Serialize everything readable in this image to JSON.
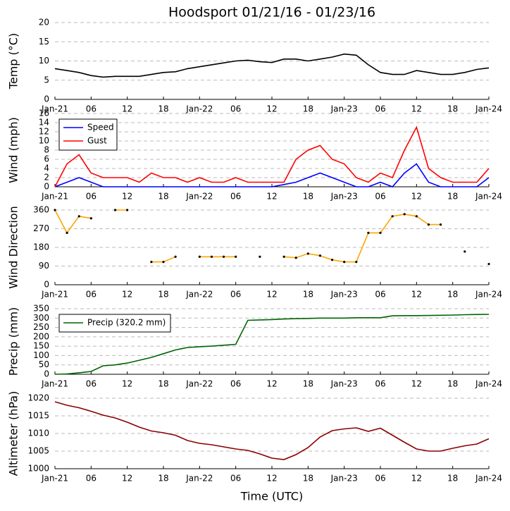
{
  "chart_data": [
    {
      "type": "line",
      "title": "Hoodsport 01/21/16 - 01/23/16",
      "ylabel": "Temp (°C)",
      "x": [
        0,
        2,
        4,
        6,
        8,
        10,
        12,
        14,
        16,
        18,
        20,
        22,
        24,
        26,
        28,
        30,
        32,
        34,
        36,
        38,
        40,
        42,
        44,
        46,
        48,
        50,
        52,
        54,
        56,
        58,
        60,
        62,
        64,
        66,
        68,
        70,
        72
      ],
      "series": [
        {
          "color": "#000000",
          "values": [
            8,
            7.5,
            7,
            6.2,
            5.8,
            6,
            6,
            6,
            6.5,
            7,
            7.2,
            8,
            8.5,
            9,
            9.5,
            10,
            10.2,
            9.8,
            9.6,
            10.5,
            10.5,
            10,
            10.5,
            11,
            11.8,
            11.5,
            9,
            7,
            6.5,
            6.5,
            7.5,
            7,
            6.5,
            6.5,
            7,
            7.8,
            8.2
          ]
        }
      ],
      "xlim": [
        0,
        72
      ],
      "ylim": [
        0,
        20
      ],
      "yticks": [
        0,
        5,
        10,
        15,
        20
      ],
      "grid": true,
      "xticks": [
        {
          "value": 0,
          "label": "Jan-21"
        },
        {
          "value": 6,
          "label": "06"
        },
        12,
        18,
        {
          "value": 24,
          "label": "Jan-22"
        },
        {
          "value": 30,
          "label": "06"
        },
        {
          "value": 36,
          "label": "12"
        },
        {
          "value": 42,
          "label": "18"
        },
        {
          "value": 48,
          "label": "Jan-23"
        },
        {
          "value": 54,
          "label": "06"
        },
        {
          "value": 60,
          "label": "12"
        },
        {
          "value": 66,
          "label": "18"
        },
        {
          "value": 72,
          "label": "Jan-24"
        }
      ]
    },
    {
      "type": "line",
      "ylabel": "Wind (mph)",
      "legend": "upper left",
      "x": [
        0,
        2,
        4,
        6,
        8,
        10,
        12,
        14,
        16,
        18,
        20,
        22,
        24,
        26,
        28,
        30,
        32,
        34,
        36,
        38,
        40,
        42,
        44,
        46,
        48,
        50,
        52,
        54,
        56,
        58,
        60,
        62,
        64,
        66,
        68,
        70,
        72
      ],
      "series": [
        {
          "name": "Speed",
          "color": "#0000ff",
          "values": [
            0,
            1,
            2,
            1,
            0,
            0,
            0,
            0,
            0,
            0,
            0,
            0,
            0,
            0,
            0,
            0,
            0,
            0,
            0,
            0.5,
            1,
            2,
            3,
            2,
            1,
            0,
            0,
            1,
            0,
            3,
            5,
            1,
            0,
            0,
            0,
            0,
            2
          ]
        },
        {
          "name": "Gust",
          "color": "#ff0000",
          "values": [
            0,
            5,
            7,
            3,
            2,
            2,
            2,
            1,
            3,
            2,
            2,
            1,
            2,
            1,
            1,
            2,
            1,
            1,
            1,
            1,
            6,
            8,
            9,
            6,
            5,
            2,
            1,
            3,
            2,
            8,
            13,
            4,
            2,
            1,
            1,
            1,
            4
          ]
        }
      ],
      "xlim": [
        0,
        72
      ],
      "ylim": [
        0,
        16
      ],
      "yticks": [
        0,
        2,
        4,
        6,
        8,
        10,
        12,
        14,
        16
      ],
      "grid": true,
      "xticks": [
        {
          "value": 0,
          "label": "Jan-21"
        },
        {
          "value": 6,
          "label": "06"
        },
        12,
        18,
        {
          "value": 24,
          "label": "Jan-22"
        },
        {
          "value": 30,
          "label": "06"
        },
        {
          "value": 36,
          "label": "12"
        },
        {
          "value": 42,
          "label": "18"
        },
        {
          "value": 48,
          "label": "Jan-23"
        },
        {
          "value": 54,
          "label": "06"
        },
        {
          "value": 60,
          "label": "12"
        },
        {
          "value": 66,
          "label": "18"
        },
        {
          "value": 72,
          "label": "Jan-24"
        }
      ]
    },
    {
      "type": "line",
      "ylabel": "Wind Direction",
      "markers": true,
      "x": [
        0,
        2,
        4,
        6,
        8,
        10,
        12,
        14,
        16,
        18,
        20,
        22,
        24,
        26,
        28,
        30,
        32,
        34,
        36,
        38,
        40,
        42,
        44,
        46,
        48,
        50,
        52,
        54,
        56,
        58,
        60,
        62,
        64,
        66,
        68,
        70,
        72
      ],
      "series": [
        {
          "color": "#ffa500",
          "values": [
            360,
            250,
            330,
            320,
            null,
            360,
            360,
            null,
            110,
            110,
            135,
            null,
            135,
            135,
            135,
            135,
            null,
            135,
            null,
            135,
            130,
            150,
            140,
            120,
            110,
            110,
            250,
            250,
            330,
            340,
            330,
            290,
            290,
            null,
            160,
            null,
            100
          ]
        }
      ],
      "xlim": [
        0,
        72
      ],
      "ylim": [
        0,
        360
      ],
      "yticks": [
        0,
        90,
        180,
        270,
        360
      ],
      "grid": true,
      "xticks": [
        {
          "value": 0,
          "label": "Jan-21"
        },
        {
          "value": 6,
          "label": "06"
        },
        12,
        18,
        {
          "value": 24,
          "label": "Jan-22"
        },
        {
          "value": 30,
          "label": "06"
        },
        {
          "value": 36,
          "label": "12"
        },
        {
          "value": 42,
          "label": "18"
        },
        {
          "value": 48,
          "label": "Jan-23"
        },
        {
          "value": 54,
          "label": "06"
        },
        {
          "value": 60,
          "label": "12"
        },
        {
          "value": 66,
          "label": "18"
        },
        {
          "value": 72,
          "label": "Jan-24"
        }
      ]
    },
    {
      "type": "line",
      "ylabel": "Precip (mm)",
      "legend": "upper left",
      "x": [
        0,
        2,
        4,
        6,
        8,
        10,
        12,
        14,
        16,
        18,
        20,
        22,
        24,
        26,
        28,
        30,
        32,
        34,
        36,
        38,
        40,
        42,
        44,
        46,
        48,
        50,
        52,
        54,
        56,
        58,
        60,
        62,
        64,
        66,
        68,
        70,
        72
      ],
      "series": [
        {
          "name": "Precip (320.2 mm)",
          "color": "#006400",
          "values": [
            0,
            2,
            8,
            15,
            45,
            50,
            60,
            75,
            90,
            110,
            130,
            143,
            147,
            150,
            155,
            160,
            288,
            290,
            292,
            295,
            297,
            298,
            300,
            300,
            300,
            302,
            302,
            302,
            312,
            313,
            313,
            314,
            315,
            316,
            318,
            319,
            320
          ]
        }
      ],
      "xlim": [
        0,
        72
      ],
      "ylim": [
        0,
        350
      ],
      "yticks": [
        0,
        50,
        100,
        150,
        200,
        250,
        300,
        350
      ],
      "grid": true,
      "xticks": [
        {
          "value": 0,
          "label": "Jan-21"
        },
        {
          "value": 6,
          "label": "06"
        },
        12,
        18,
        {
          "value": 24,
          "label": "Jan-22"
        },
        {
          "value": 30,
          "label": "06"
        },
        {
          "value": 36,
          "label": "12"
        },
        {
          "value": 42,
          "label": "18"
        },
        {
          "value": 48,
          "label": "Jan-23"
        },
        {
          "value": 54,
          "label": "06"
        },
        {
          "value": 60,
          "label": "12"
        },
        {
          "value": 66,
          "label": "18"
        },
        {
          "value": 72,
          "label": "Jan-24"
        }
      ]
    },
    {
      "type": "line",
      "ylabel": "Altimeter (hPa)",
      "xlabel": "Time (UTC)",
      "x": [
        0,
        2,
        4,
        6,
        8,
        10,
        12,
        14,
        16,
        18,
        20,
        22,
        24,
        26,
        28,
        30,
        32,
        34,
        36,
        38,
        40,
        42,
        44,
        46,
        48,
        50,
        52,
        54,
        56,
        58,
        60,
        62,
        64,
        66,
        68,
        70,
        72
      ],
      "series": [
        {
          "color": "#8b0000",
          "values": [
            1019,
            1018,
            1017.3,
            1016.3,
            1015.2,
            1014.4,
            1013.2,
            1011.8,
            1010.7,
            1010.2,
            1009.5,
            1008,
            1007.2,
            1006.8,
            1006.2,
            1005.6,
            1005.2,
            1004.2,
            1003,
            1002.6,
            1004,
            1006,
            1009,
            1010.8,
            1011.3,
            1011.6,
            1010.6,
            1011.5,
            1009.5,
            1007.5,
            1005.6,
            1005,
            1005,
            1005.8,
            1006.5,
            1007,
            1008.5
          ]
        }
      ],
      "xlim": [
        0,
        72
      ],
      "ylim": [
        1000,
        1020
      ],
      "yticks": [
        1000,
        1005,
        1010,
        1015,
        1020
      ],
      "grid": true,
      "xticks": [
        {
          "value": 0,
          "label": "Jan-21"
        },
        {
          "value": 6,
          "label": "06"
        },
        12,
        18,
        {
          "value": 24,
          "label": "Jan-22"
        },
        {
          "value": 30,
          "label": "06"
        },
        {
          "value": 36,
          "label": "12"
        },
        {
          "value": 42,
          "label": "18"
        },
        {
          "value": 48,
          "label": "Jan-23"
        },
        {
          "value": 54,
          "label": "06"
        },
        {
          "value": 60,
          "label": "12"
        },
        {
          "value": 66,
          "label": "18"
        },
        {
          "value": 72,
          "label": "Jan-24"
        }
      ]
    }
  ]
}
